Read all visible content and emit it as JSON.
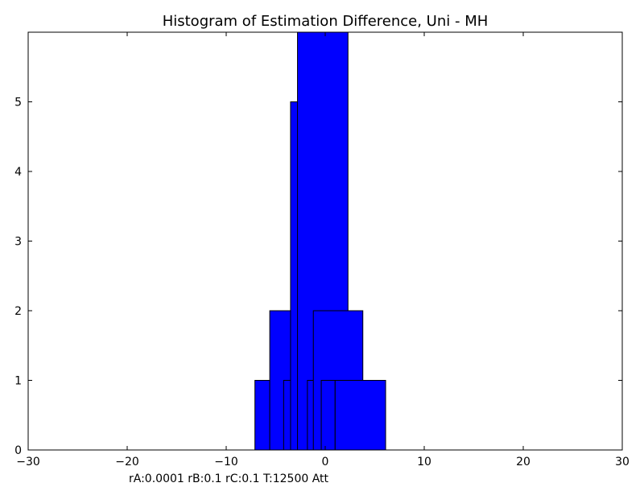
{
  "chart_data": {
    "type": "bar",
    "title": "Histogram of Estimation Difference, Uni - MH",
    "xlabel": "",
    "ylabel": "",
    "xlim": [
      -30,
      30
    ],
    "ylim": [
      0,
      6
    ],
    "xticks": [
      -30,
      -20,
      -10,
      0,
      10,
      20,
      30
    ],
    "xtick_labels": [
      "−30",
      "−20",
      "−10",
      "0",
      "10",
      "20",
      "30"
    ],
    "yticks": [
      0,
      1,
      2,
      3,
      4,
      5
    ],
    "ytick_labels": [
      "0",
      "1",
      "2",
      "3",
      "4",
      "5"
    ],
    "grid": false,
    "bar_color": "#0000ff",
    "edge_color": "#000000",
    "bars": [
      {
        "x0": -7.1,
        "x1": -5.6,
        "value": 1
      },
      {
        "x0": -5.6,
        "x1": -3.4,
        "value": 2
      },
      {
        "x0": -4.2,
        "x1": -3.4,
        "value": 1
      },
      {
        "x0": -3.5,
        "x1": -2.6,
        "value": 5
      },
      {
        "x0": -2.8,
        "x1": 2.3,
        "value": 6
      },
      {
        "x0": -1.8,
        "x1": -1.0,
        "value": 1
      },
      {
        "x0": -1.2,
        "x1": 3.8,
        "value": 2
      },
      {
        "x0": -0.4,
        "x1": 1.0,
        "value": 1
      },
      {
        "x0": 1.0,
        "x1": 6.1,
        "value": 1
      }
    ]
  },
  "footer": {
    "note": "rA:0.0001 rB:0.1 rC:0.1 T:12500 Att"
  }
}
